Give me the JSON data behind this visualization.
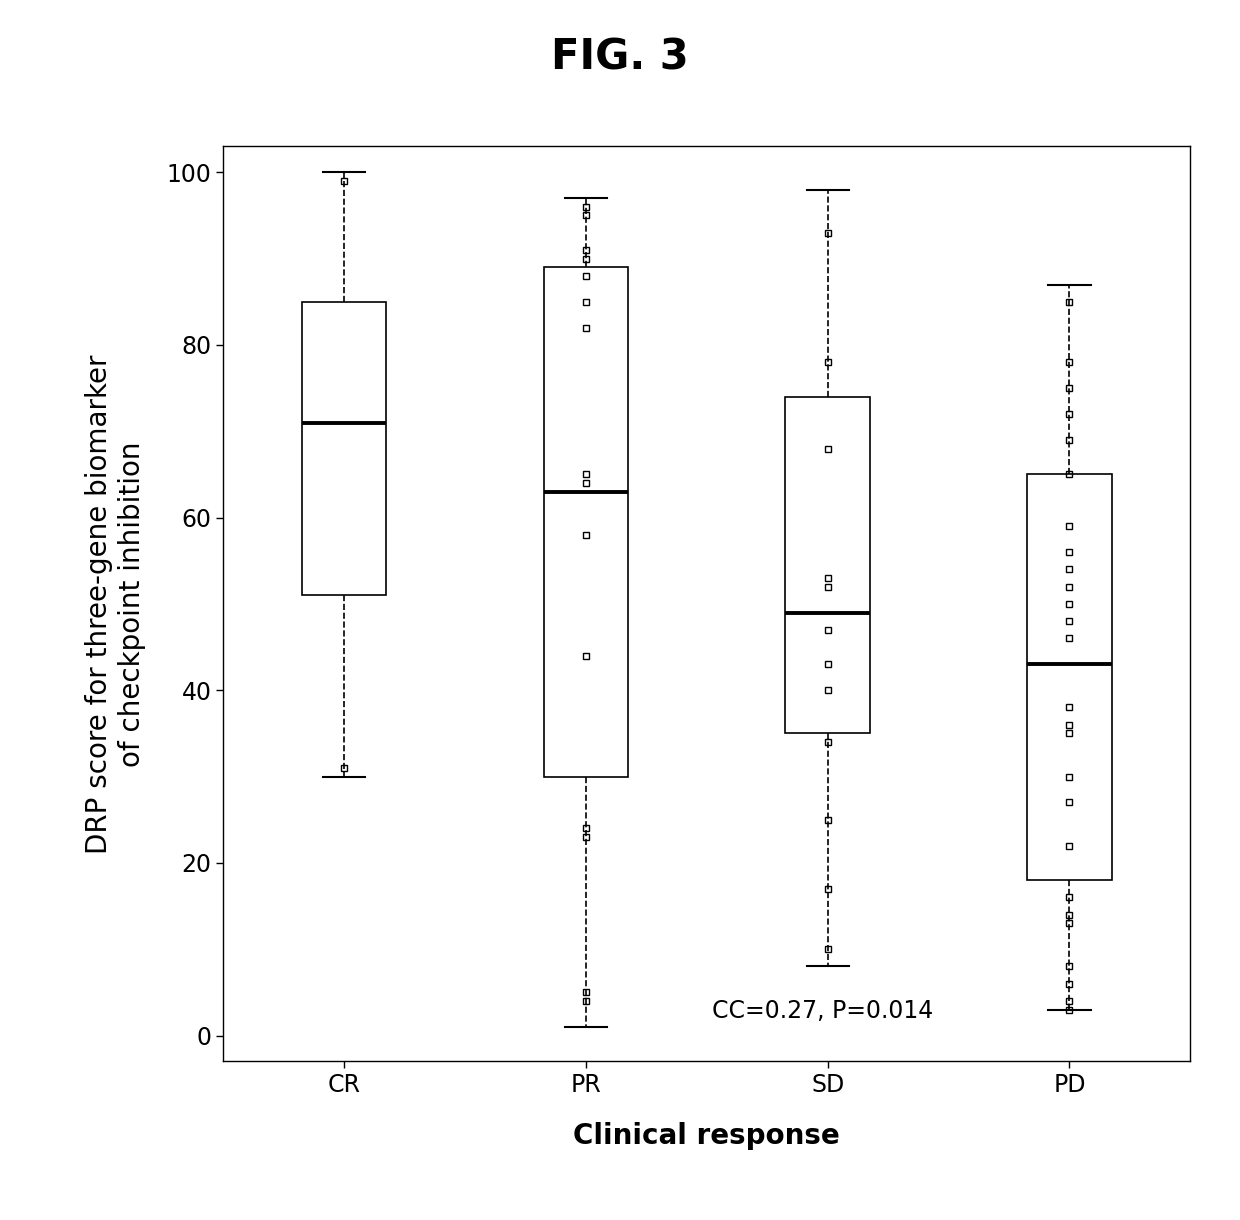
{
  "title": "FIG. 3",
  "xlabel": "Clinical response",
  "ylabel": "DRP score for three-gene biomarker\nof checkpoint inhibition",
  "categories": [
    "CR",
    "PR",
    "SD",
    "PD"
  ],
  "annotation": "CC=0.27, P=0.014",
  "ylim": [
    -3,
    103
  ],
  "yticks": [
    0,
    20,
    40,
    60,
    80,
    100
  ],
  "box_stats": {
    "CR": {
      "whislo": 30,
      "q1": 51,
      "med": 71,
      "q3": 85,
      "whishi": 100,
      "fliers": [
        99,
        31
      ]
    },
    "PR": {
      "whislo": 1,
      "q1": 30,
      "med": 63,
      "q3": 89,
      "whishi": 97,
      "fliers": [
        96,
        95,
        91,
        90,
        88,
        85,
        82,
        65,
        64,
        58,
        44,
        24,
        23,
        5,
        4
      ]
    },
    "SD": {
      "whislo": 8,
      "q1": 35,
      "med": 49,
      "q3": 74,
      "whishi": 98,
      "fliers": [
        93,
        78,
        68,
        53,
        52,
        47,
        43,
        40,
        34,
        25,
        17,
        10
      ]
    },
    "PD": {
      "whislo": 3,
      "q1": 18,
      "med": 43,
      "q3": 65,
      "whishi": 87,
      "fliers": [
        85,
        78,
        75,
        72,
        69,
        65,
        59,
        56,
        54,
        52,
        50,
        48,
        46,
        38,
        36,
        35,
        30,
        27,
        22,
        16,
        14,
        13,
        8,
        6,
        4,
        3
      ]
    }
  },
  "title_fontsize": 30,
  "axis_label_fontsize": 20,
  "tick_fontsize": 17,
  "annotation_fontsize": 17,
  "box_width": 0.35,
  "background_color": "#ffffff",
  "box_facecolor": "#ffffff",
  "box_edgecolor": "#000000",
  "median_color": "#000000",
  "whisker_color": "#000000",
  "flier_marker": "s",
  "flier_size": 5
}
